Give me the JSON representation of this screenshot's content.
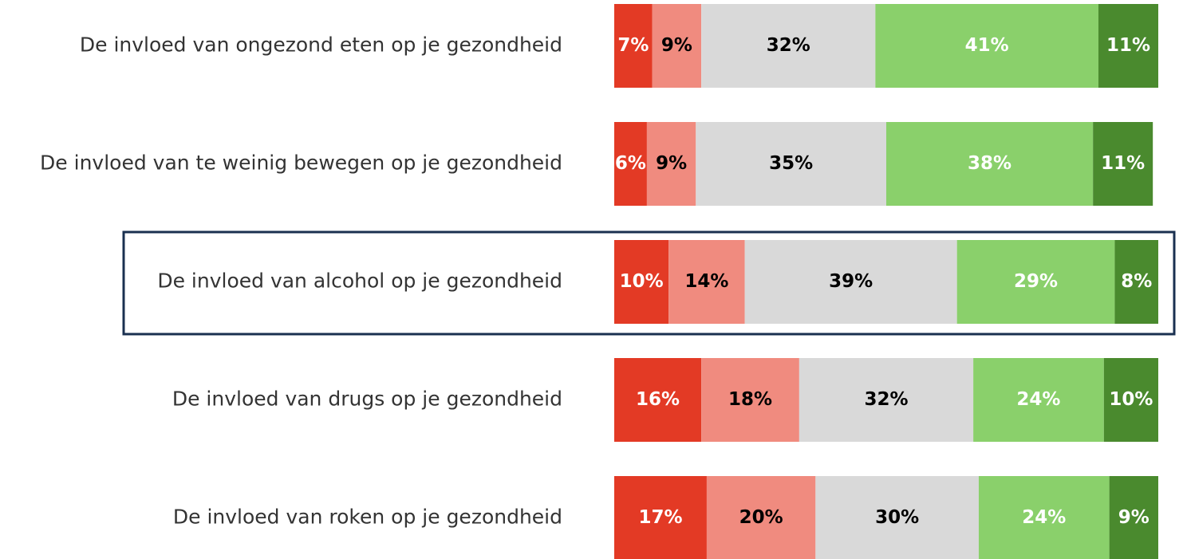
{
  "chart_data": {
    "type": "stacked-bar-horizontal",
    "categories": [
      "De invloed van ongezond eten op je gezondheid",
      "De invloed van te weinig bewegen op je gezondheid",
      "De invloed van alcohol op je gezondheid",
      "De invloed van drugs op je gezondheid",
      "De invloed van roken op je gezondheid"
    ],
    "xlim": [
      0,
      100
    ],
    "highlight": 2,
    "series": [
      {
        "color": "#e33a25",
        "label_color": "#ffffff",
        "values": [
          7,
          6,
          10,
          16,
          17
        ],
        "value_labels": [
          "7%",
          "6%",
          "10%",
          "16%",
          "17%"
        ]
      },
      {
        "color": "#f08b7f",
        "label_color": "#000000",
        "values": [
          9,
          9,
          14,
          18,
          20
        ],
        "value_labels": [
          "9%",
          "9%",
          "14%",
          "18%",
          "20%"
        ]
      },
      {
        "color": "#d9d9d9",
        "label_color": "#000000",
        "values": [
          32,
          35,
          39,
          32,
          30
        ],
        "value_labels": [
          "32%",
          "35%",
          "39%",
          "32%",
          "30%"
        ]
      },
      {
        "color": "#8ad06b",
        "label_color": "#ffffff",
        "values": [
          41,
          38,
          29,
          24,
          24
        ],
        "value_labels": [
          "41%",
          "38%",
          "29%",
          "24%",
          "24%"
        ]
      },
      {
        "color": "#4a8a2e",
        "label_color": "#ffffff",
        "values": [
          11,
          11,
          8,
          10,
          9
        ],
        "value_labels": [
          "11%",
          "11%",
          "8%",
          "10%",
          "9%"
        ]
      }
    ]
  }
}
